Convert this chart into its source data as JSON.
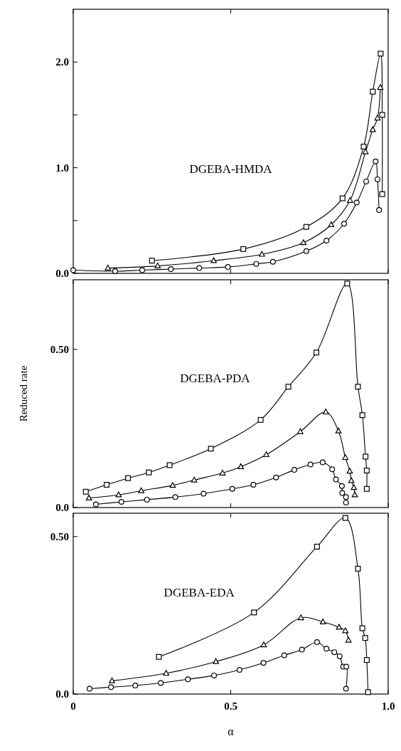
{
  "chart_data": [
    {
      "type": "line",
      "annotations": [
        "DGEBA-HMDA"
      ],
      "xlim": [
        0,
        1.0
      ],
      "xticks": [
        {
          "value": 0,
          "label": null
        },
        {
          "value": 0.5,
          "label": null
        },
        {
          "value": 1,
          "label": null
        }
      ],
      "ylim": [
        0,
        2.5
      ],
      "yticks": [
        {
          "value": 0,
          "label": "0.0"
        },
        {
          "value": 0.5,
          "label": null
        },
        {
          "value": 1,
          "label": "1.0"
        },
        {
          "value": 1.5,
          "label": null
        },
        {
          "value": 2,
          "label": "2.0"
        }
      ],
      "tick_labels": "y",
      "line_style": "solid",
      "series": [
        {
          "color": "#000000",
          "marker": "square",
          "x": [
            0.25,
            0.54,
            0.74,
            0.855,
            0.922,
            0.951,
            0.976,
            0.981,
            0.981
          ],
          "values": [
            0.12,
            0.23,
            0.44,
            0.71,
            1.2,
            1.72,
            2.08,
            1.5,
            0.75
          ]
        },
        {
          "color": "#000000",
          "marker": "triangle",
          "x": [
            0.11,
            0.268,
            0.446,
            0.599,
            0.731,
            0.819,
            0.879,
            0.928,
            0.951,
            0.966,
            0.975
          ],
          "values": [
            0.05,
            0.07,
            0.12,
            0.18,
            0.29,
            0.46,
            0.69,
            1.15,
            1.36,
            1.47,
            1.76
          ]
        },
        {
          "color": "#000000",
          "marker": "circle",
          "x": [
            0.0,
            0.133,
            0.219,
            0.31,
            0.4,
            0.491,
            0.581,
            0.634,
            0.74,
            0.804,
            0.86,
            0.9,
            0.93,
            0.96,
            0.966,
            0.971
          ],
          "values": [
            0.03,
            0.02,
            0.03,
            0.04,
            0.05,
            0.06,
            0.09,
            0.11,
            0.21,
            0.31,
            0.47,
            0.67,
            0.87,
            1.06,
            0.89,
            0.6
          ]
        }
      ]
    },
    {
      "type": "line",
      "annotations": [
        "DGEBA-PDA"
      ],
      "ylabel": "Reduced rate",
      "xlim": [
        0,
        1.0
      ],
      "xticks": [
        {
          "value": 0,
          "label": null
        },
        {
          "value": 0.5,
          "label": null
        },
        {
          "value": 1,
          "label": null
        }
      ],
      "ylim": [
        0,
        0.72
      ],
      "yticks": [
        {
          "value": 0,
          "label": "0.0"
        },
        {
          "value": 0.5,
          "label": "0.50"
        }
      ],
      "tick_labels": "y",
      "line_style": "solid",
      "series": [
        {
          "color": "#000000",
          "marker": "square",
          "x": [
            0.04,
            0.106,
            0.174,
            0.24,
            0.306,
            0.437,
            0.595,
            0.683,
            0.772,
            0.87,
            0.904,
            0.918,
            0.928,
            0.932,
            0.932
          ],
          "values": [
            0.05,
            0.072,
            0.093,
            0.111,
            0.134,
            0.186,
            0.277,
            0.382,
            0.49,
            0.708,
            0.382,
            0.292,
            0.161,
            0.117,
            0.059
          ]
        },
        {
          "color": "#000000",
          "marker": "triangle",
          "x": [
            0.05,
            0.144,
            0.216,
            0.316,
            0.384,
            0.474,
            0.532,
            0.613,
            0.721,
            0.802,
            0.842,
            0.864,
            0.878,
            0.883,
            0.891,
            0.894
          ],
          "values": [
            0.03,
            0.04,
            0.053,
            0.07,
            0.087,
            0.109,
            0.129,
            0.167,
            0.24,
            0.302,
            0.242,
            0.158,
            0.115,
            0.085,
            0.063,
            0.04
          ]
        },
        {
          "color": "#000000",
          "marker": "circle",
          "x": [
            0.072,
            0.153,
            0.234,
            0.324,
            0.414,
            0.505,
            0.572,
            0.644,
            0.702,
            0.753,
            0.792,
            0.822,
            0.834,
            0.853,
            0.854,
            0.866,
            0.866
          ],
          "values": [
            0.01,
            0.018,
            0.025,
            0.033,
            0.044,
            0.059,
            0.072,
            0.095,
            0.119,
            0.136,
            0.143,
            0.121,
            0.089,
            0.068,
            0.046,
            0.033,
            0.016
          ]
        }
      ]
    },
    {
      "type": "line",
      "annotations": [
        "DGEBA-EDA"
      ],
      "xlabel": "α",
      "xlim": [
        0,
        1.0
      ],
      "xticks": [
        {
          "value": 0,
          "label": "0"
        },
        {
          "value": 0.5,
          "label": "0.5"
        },
        {
          "value": 1,
          "label": "1.0"
        }
      ],
      "ylim": [
        0,
        0.574
      ],
      "yticks": [
        {
          "value": 0,
          "label": "0.0"
        },
        {
          "value": 0.5,
          "label": "0.50"
        }
      ],
      "line_style": "solid",
      "series": [
        {
          "color": "#000000",
          "marker": "square",
          "x": [
            0.272,
            0.574,
            0.774,
            0.864,
            0.904,
            0.918,
            0.927,
            0.932,
            0.936
          ],
          "values": [
            0.118,
            0.259,
            0.468,
            0.559,
            0.398,
            0.209,
            0.178,
            0.108,
            0.006
          ]
        },
        {
          "color": "#000000",
          "marker": "triangle",
          "x": [
            0.123,
            0.295,
            0.453,
            0.605,
            0.723,
            0.793,
            0.844,
            0.864,
            0.874
          ],
          "values": [
            0.042,
            0.066,
            0.103,
            0.156,
            0.242,
            0.229,
            0.212,
            0.201,
            0.171
          ]
        },
        {
          "color": "#000000",
          "marker": "circle",
          "x": [
            0.052,
            0.12,
            0.197,
            0.278,
            0.364,
            0.447,
            0.528,
            0.604,
            0.67,
            0.726,
            0.774,
            0.804,
            0.829,
            0.846,
            0.857,
            0.867,
            0.866
          ],
          "values": [
            0.017,
            0.022,
            0.027,
            0.035,
            0.047,
            0.059,
            0.077,
            0.099,
            0.123,
            0.141,
            0.165,
            0.144,
            0.133,
            0.12,
            0.087,
            0.087,
            0.017
          ]
        }
      ]
    }
  ]
}
